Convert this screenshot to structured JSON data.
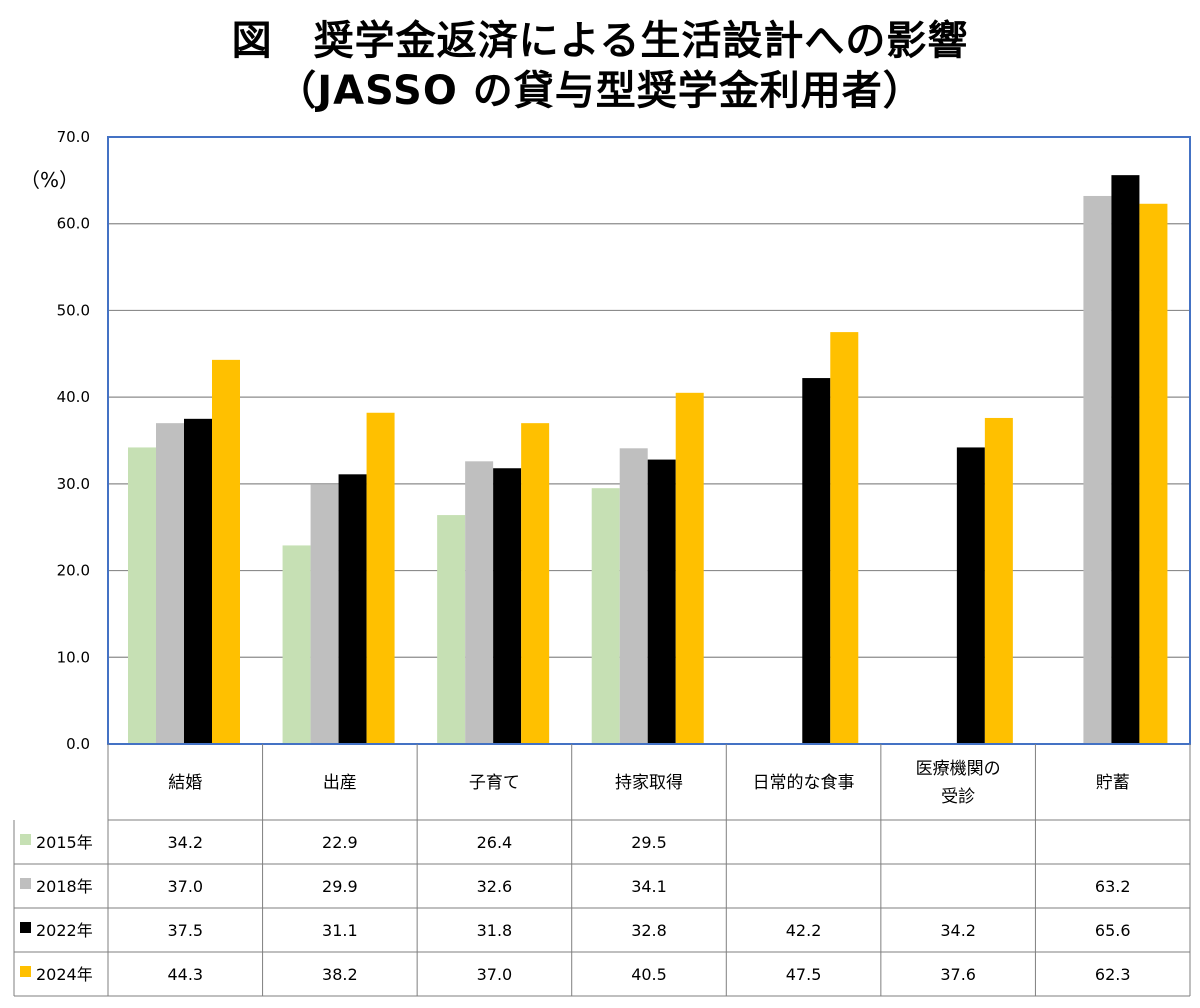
{
  "title_line1": "図　奨学金返済による生活設計への影響",
  "title_line2": "（JASSO の貸与型奨学金利用者）",
  "unit_label": "（%）",
  "chart_data": {
    "type": "bar",
    "categories": [
      "結婚",
      "出産",
      "子育て",
      "持家取得",
      "日常的な食事",
      "医療機関の受診",
      "貯蓄"
    ],
    "category_lines": [
      [
        "結婚"
      ],
      [
        "出産"
      ],
      [
        "子育て"
      ],
      [
        "持家取得"
      ],
      [
        "日常的な食事"
      ],
      [
        "医療機関の",
        "受診"
      ],
      [
        "貯蓄"
      ]
    ],
    "series": [
      {
        "name": "2015年",
        "color": "#c6e0b4",
        "values": [
          34.2,
          22.9,
          26.4,
          29.5,
          null,
          null,
          null
        ]
      },
      {
        "name": "2018年",
        "color": "#bfbfbf",
        "values": [
          37.0,
          29.9,
          32.6,
          34.1,
          null,
          null,
          63.2
        ]
      },
      {
        "name": "2022年",
        "color": "#000000",
        "values": [
          37.5,
          31.1,
          31.8,
          32.8,
          42.2,
          34.2,
          65.6
        ]
      },
      {
        "name": "2024年",
        "color": "#ffc000",
        "values": [
          44.3,
          38.2,
          37.0,
          40.5,
          47.5,
          37.6,
          62.3
        ]
      }
    ],
    "ylim": [
      0,
      70
    ],
    "yticks": [
      "0.0",
      "10.0",
      "20.0",
      "30.0",
      "40.0",
      "50.0",
      "60.0",
      "70.0"
    ],
    "grid": true,
    "legend": "data-table"
  }
}
